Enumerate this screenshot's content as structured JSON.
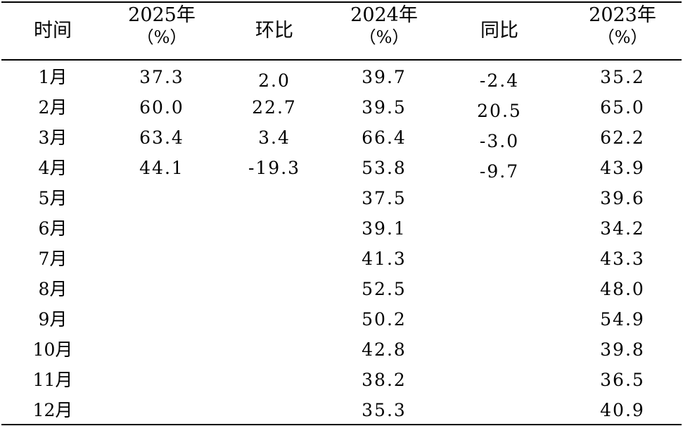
{
  "header": {
    "col_month": "时间",
    "col_2025": "2025年",
    "col_2025_unit": "（%）",
    "col_mom": "环比",
    "col_2024": "2024年",
    "col_2024_unit": "（%）",
    "col_yoy": "同比",
    "col_2023": "2023年",
    "col_2023_unit": "（%）"
  },
  "rows": [
    {
      "month": "1月",
      "y2025": "37.3",
      "mom": "2.0",
      "y2024": "39.7",
      "yoy": "-2.4",
      "y2023": "35.2"
    },
    {
      "month": "2月",
      "y2025": "60.0",
      "mom": "22.7",
      "y2024": "39.5",
      "yoy": "20.5",
      "y2023": "65.0"
    },
    {
      "month": "3月",
      "y2025": "63.4",
      "mom": "3.4",
      "y2024": "66.4",
      "yoy": "-3.0",
      "y2023": "62.2"
    },
    {
      "month": "4月",
      "y2025": "44.1",
      "mom": "-19.3",
      "y2024": "53.8",
      "yoy": "-9.7",
      "y2023": "43.9"
    },
    {
      "month": "5月",
      "y2025": "",
      "mom": "",
      "y2024": "37.5",
      "yoy": "",
      "y2023": "39.6"
    },
    {
      "month": "6月",
      "y2025": "",
      "mom": "",
      "y2024": "39.1",
      "yoy": "",
      "y2023": "34.2"
    },
    {
      "month": "7月",
      "y2025": "",
      "mom": "",
      "y2024": "41.3",
      "yoy": "",
      "y2023": "43.3"
    },
    {
      "month": "8月",
      "y2025": "",
      "mom": "",
      "y2024": "52.5",
      "yoy": "",
      "y2023": "48.0"
    },
    {
      "month": "9月",
      "y2025": "",
      "mom": "",
      "y2024": "50.2",
      "yoy": "",
      "y2023": "54.9"
    },
    {
      "month": "10月",
      "y2025": "",
      "mom": "",
      "y2024": "42.8",
      "yoy": "",
      "y2023": "39.8"
    },
    {
      "month": "11月",
      "y2025": "",
      "mom": "",
      "y2024": "38.2",
      "yoy": "",
      "y2023": "36.5"
    },
    {
      "month": "12月",
      "y2025": "",
      "mom": "",
      "y2024": "35.3",
      "yoy": "",
      "y2023": "40.9"
    }
  ]
}
